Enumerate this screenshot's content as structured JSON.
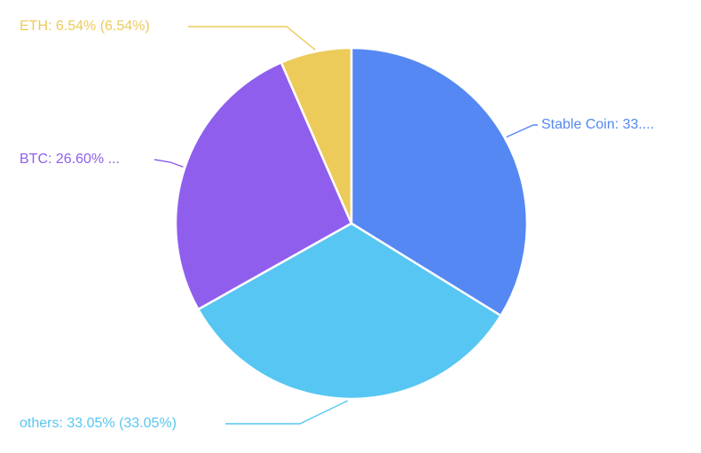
{
  "chart_data": {
    "type": "pie",
    "title": "",
    "slices": [
      {
        "name": "Stable Coin",
        "value": 33.81,
        "color": "#5588F3",
        "label": "Stable Coin: 33...."
      },
      {
        "name": "others",
        "value": 33.05,
        "color": "#57C6F2",
        "label": "others: 33.05% (33.05%)"
      },
      {
        "name": "BTC",
        "value": 26.6,
        "color": "#905EED",
        "label": "BTC: 26.60% ..."
      },
      {
        "name": "ETH",
        "value": 6.54,
        "color": "#ECCB5A",
        "label": "ETH: 6.54% (6.54%)"
      }
    ],
    "start_angle": "12 o'clock",
    "direction": "clockwise",
    "legend": "none"
  }
}
